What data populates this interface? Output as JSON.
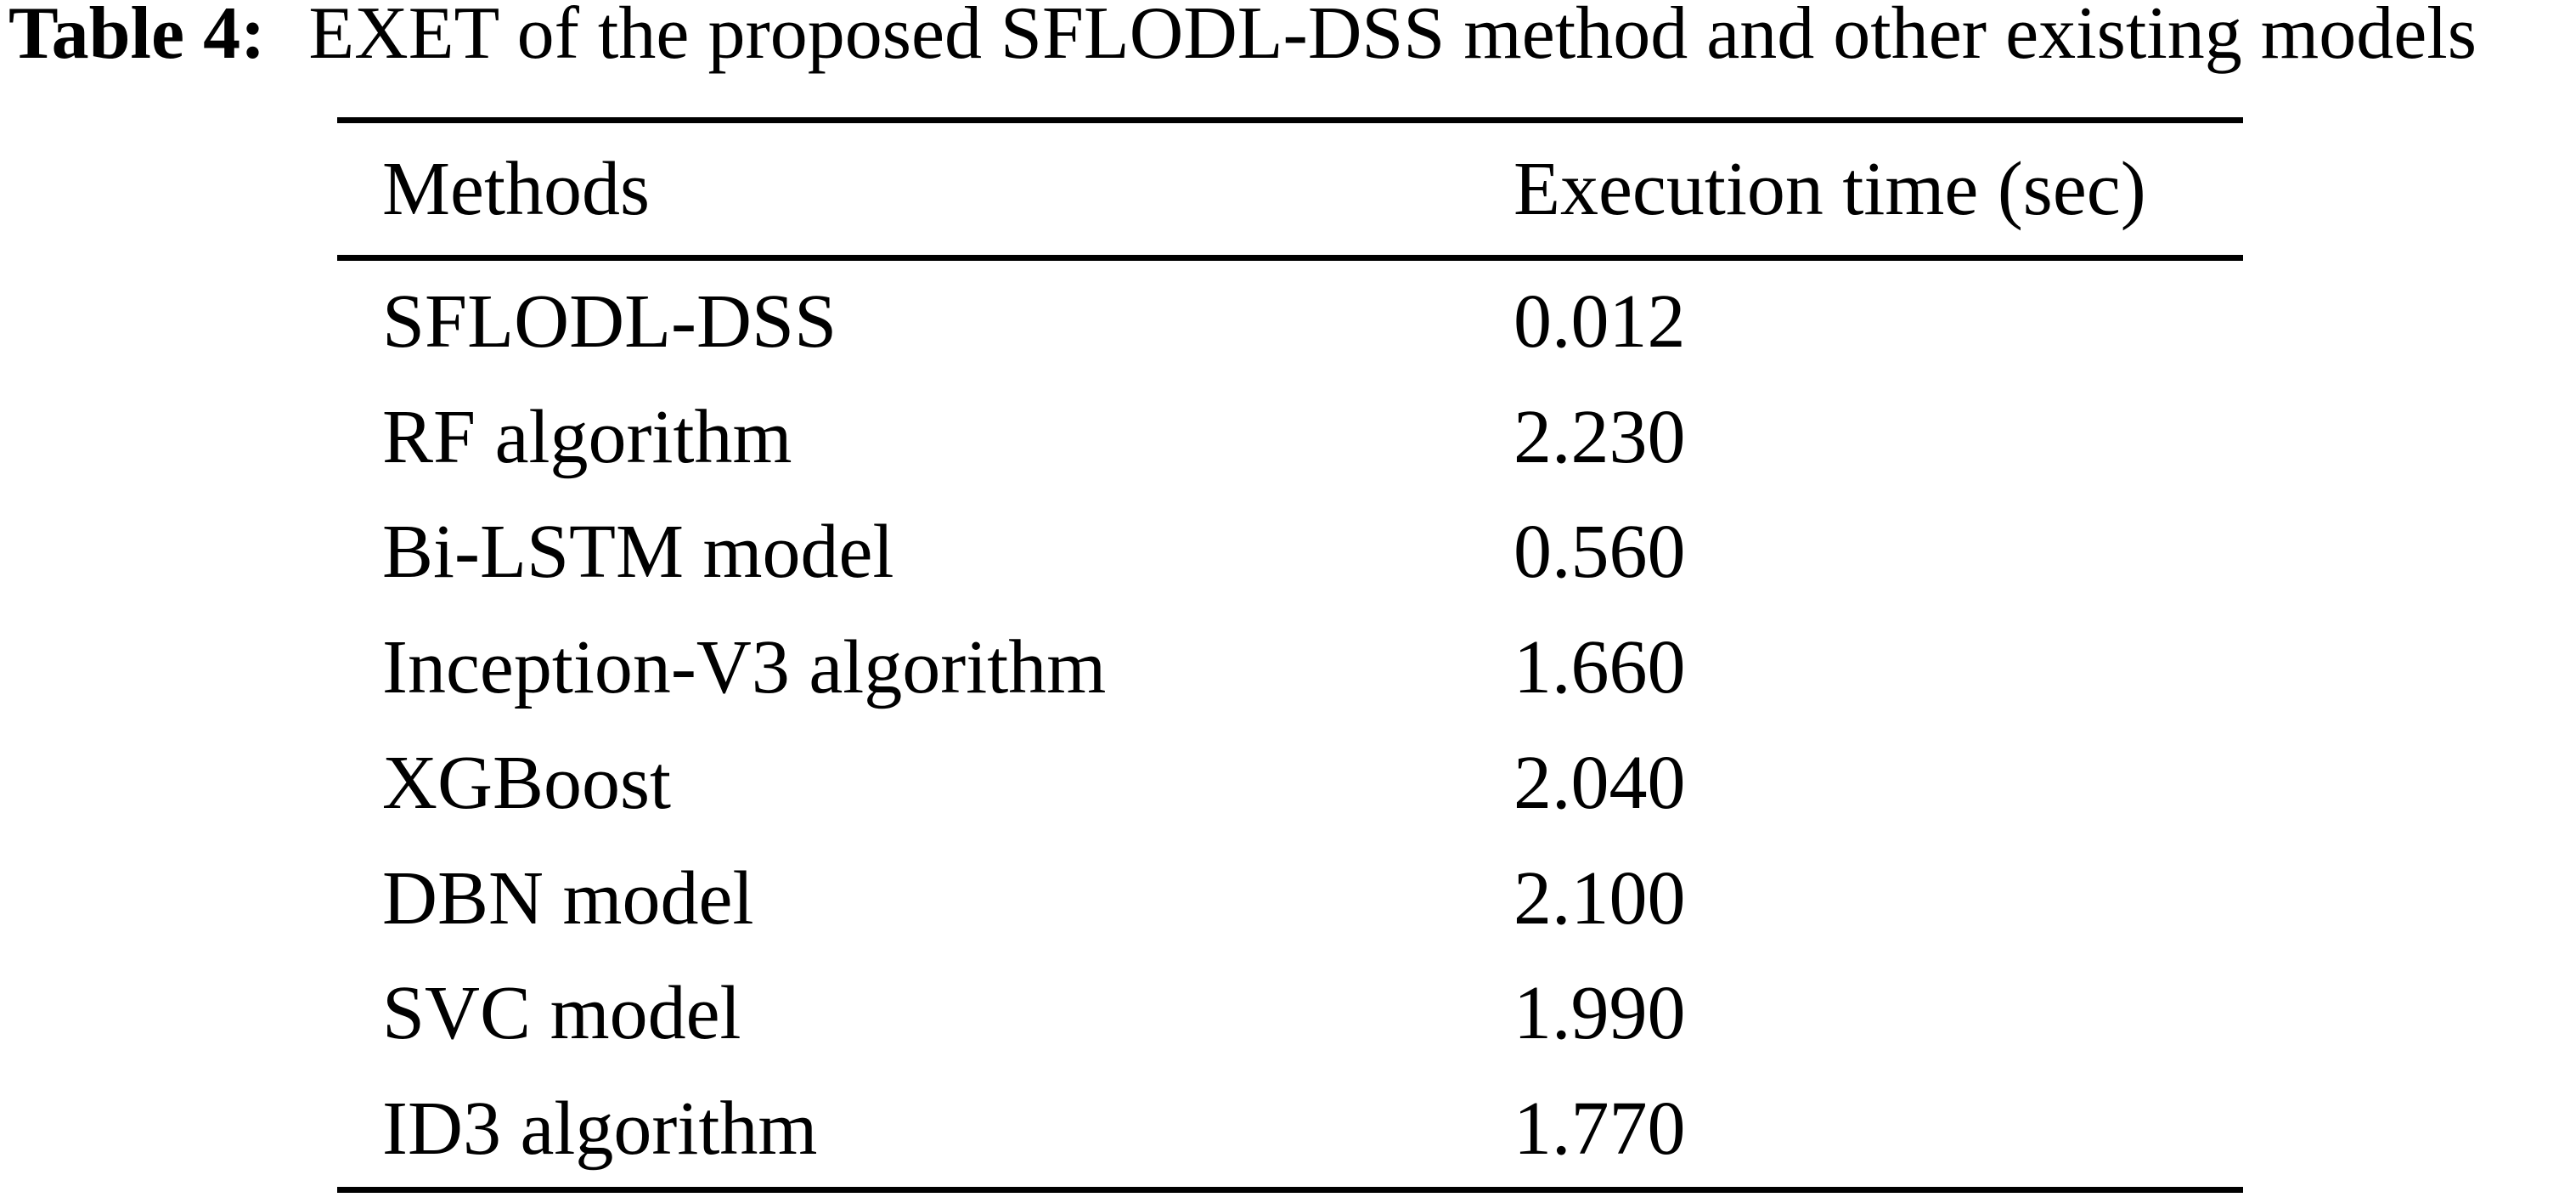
{
  "caption": {
    "label": "Table 4:",
    "text": "EXET of the proposed SFLODL-DSS method and other existing models"
  },
  "table": {
    "columns": [
      "Methods",
      "Execution time (sec)"
    ],
    "rows": [
      {
        "method": "SFLODL-DSS",
        "time": "0.012"
      },
      {
        "method": "RF algorithm",
        "time": "2.230"
      },
      {
        "method": "Bi-LSTM model",
        "time": "0.560"
      },
      {
        "method": "Inception-V3 algorithm",
        "time": "1.660"
      },
      {
        "method": "XGBoost",
        "time": "2.040"
      },
      {
        "method": "DBN model",
        "time": "2.100"
      },
      {
        "method": "SVC model",
        "time": "1.990"
      },
      {
        "method": "ID3 algorithm",
        "time": "1.770"
      }
    ]
  },
  "chart_data": {
    "type": "table",
    "title": "Table 4: EXET of the proposed SFLODL-DSS method and other existing models",
    "categories": [
      "SFLODL-DSS",
      "RF algorithm",
      "Bi-LSTM model",
      "Inception-V3 algorithm",
      "XGBoost",
      "DBN model",
      "SVC model",
      "ID3 algorithm"
    ],
    "values": [
      0.012,
      2.23,
      0.56,
      1.66,
      2.04,
      2.1,
      1.99,
      1.77
    ],
    "xlabel": "Methods",
    "ylabel": "Execution time (sec)"
  },
  "colors": {
    "text": "#000000",
    "background": "#ffffff",
    "rule": "#000000"
  }
}
